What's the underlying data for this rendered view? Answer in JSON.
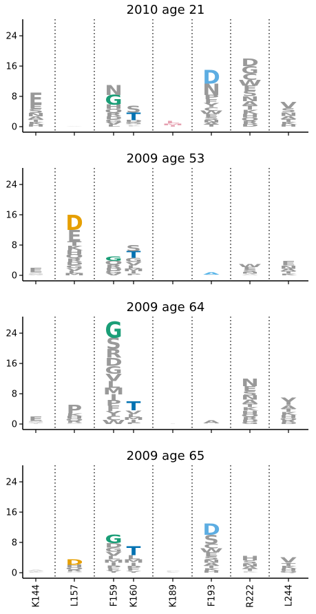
{
  "chart_data": {
    "type": "sequence-logo",
    "x_tick_labels": [
      "K144",
      "L157",
      "F159",
      "K160",
      "K189",
      "F193",
      "R222",
      "L244"
    ],
    "y_ticks": [
      0,
      8,
      16,
      24
    ],
    "ylim": [
      0,
      28
    ],
    "colors": {
      "gray": "#999999",
      "faint": "#d9d9d9",
      "D": "#5dade2",
      "D_orange": "#e69f00",
      "G": "#1a9e77",
      "T": "#0072b2",
      "A": "#56b4e9",
      "pink": "#e6a0b0"
    },
    "panels": [
      {
        "title": "2010 age 21",
        "stacks": [
          {
            "site": "K144",
            "total": 9,
            "top": [
              {
                "letter": "E",
                "color": "gray",
                "height": 3.2
              }
            ]
          },
          {
            "site": "L157",
            "total": 0.2,
            "top": []
          },
          {
            "site": "F159",
            "total": 11,
            "top": [
              {
                "letter": "G",
                "color": "G",
                "height": 2.6
              },
              {
                "letter": "N",
                "color": "gray",
                "height": 2.6
              }
            ]
          },
          {
            "site": "K160",
            "total": 5.5,
            "top": [
              {
                "letter": "T",
                "color": "T",
                "height": 2.0
              },
              {
                "letter": "S",
                "color": "gray",
                "height": 1.8
              }
            ]
          },
          {
            "site": "K189",
            "total": 1.5,
            "top": []
          },
          {
            "site": "F193",
            "total": 15,
            "top": [
              {
                "letter": "N",
                "color": "gray",
                "height": 3.0
              },
              {
                "letter": "D",
                "color": "D",
                "height": 3.6
              }
            ]
          },
          {
            "site": "R222",
            "total": 18,
            "top": [
              {
                "letter": "G",
                "color": "gray",
                "height": 2.0
              },
              {
                "letter": "D",
                "color": "gray",
                "height": 2.0
              }
            ]
          },
          {
            "site": "L244",
            "total": 6.5,
            "top": [
              {
                "letter": "V",
                "color": "gray",
                "height": 1.6
              }
            ]
          }
        ]
      },
      {
        "title": "2009 age 53",
        "stacks": [
          {
            "site": "K144",
            "total": 2,
            "top": [
              {
                "letter": "E",
                "color": "gray",
                "height": 1.2
              }
            ]
          },
          {
            "site": "L157",
            "total": 16,
            "top": [
              {
                "letter": "E",
                "color": "gray",
                "height": 3.0
              },
              {
                "letter": "D",
                "color": "D_orange",
                "height": 4.0
              }
            ]
          },
          {
            "site": "F159",
            "total": 5,
            "top": [
              {
                "letter": "G",
                "color": "G",
                "height": 1.2
              }
            ]
          },
          {
            "site": "K160",
            "total": 8,
            "top": [
              {
                "letter": "T",
                "color": "T",
                "height": 1.8
              },
              {
                "letter": "S",
                "color": "gray",
                "height": 1.6
              }
            ]
          },
          {
            "site": "K189",
            "total": 0.1,
            "top": []
          },
          {
            "site": "F193",
            "total": 0.8,
            "top": [
              {
                "letter": "A",
                "color": "A",
                "height": 0.6
              }
            ]
          },
          {
            "site": "R222",
            "total": 3,
            "top": []
          },
          {
            "site": "L244",
            "total": 3.8,
            "top": [
              {
                "letter": "E",
                "color": "gray",
                "height": 1.2
              }
            ]
          }
        ]
      },
      {
        "title": "2009 age 64",
        "stacks": [
          {
            "site": "K144",
            "total": 2,
            "top": [
              {
                "letter": "E",
                "color": "gray",
                "height": 1.2
              }
            ]
          },
          {
            "site": "L157",
            "total": 5,
            "top": [
              {
                "letter": "P",
                "color": "gray",
                "height": 2.2
              }
            ]
          },
          {
            "site": "F159",
            "total": 27,
            "top": [
              {
                "letter": "S",
                "color": "gray",
                "height": 3.0
              },
              {
                "letter": "G",
                "color": "G",
                "height": 4.2
              }
            ]
          },
          {
            "site": "K160",
            "total": 6,
            "top": [
              {
                "letter": "T",
                "color": "T",
                "height": 2.4
              }
            ]
          },
          {
            "site": "K189",
            "total": 0.2,
            "top": []
          },
          {
            "site": "F193",
            "total": 1,
            "top": [
              {
                "letter": "A",
                "color": "gray",
                "height": 0.8
              }
            ]
          },
          {
            "site": "R222",
            "total": 12,
            "top": [
              {
                "letter": "N",
                "color": "gray",
                "height": 2.0
              }
            ]
          },
          {
            "site": "L244",
            "total": 7,
            "top": [
              {
                "letter": "Y",
                "color": "gray",
                "height": 2.0
              }
            ]
          }
        ]
      },
      {
        "title": "2009 age 65",
        "stacks": [
          {
            "site": "K144",
            "total": 0.8,
            "top": []
          },
          {
            "site": "L157",
            "total": 3.5,
            "top": [
              {
                "letter": "D",
                "color": "D_orange",
                "height": 1.4
              }
            ]
          },
          {
            "site": "F159",
            "total": 10,
            "top": [
              {
                "letter": "G",
                "color": "G",
                "height": 2.2
              }
            ]
          },
          {
            "site": "K160",
            "total": 7,
            "top": [
              {
                "letter": "T",
                "color": "T",
                "height": 2.4
              }
            ]
          },
          {
            "site": "K189",
            "total": 0.4,
            "top": []
          },
          {
            "site": "F193",
            "total": 13,
            "top": [
              {
                "letter": "S",
                "color": "gray",
                "height": 2.4
              },
              {
                "letter": "D",
                "color": "D",
                "height": 3.0
              }
            ]
          },
          {
            "site": "R222",
            "total": 4.5,
            "top": [
              {
                "letter": "H",
                "color": "gray",
                "height": 1.2
              }
            ]
          },
          {
            "site": "L244",
            "total": 4,
            "top": [
              {
                "letter": "V",
                "color": "gray",
                "height": 1.4
              }
            ]
          }
        ]
      }
    ]
  }
}
